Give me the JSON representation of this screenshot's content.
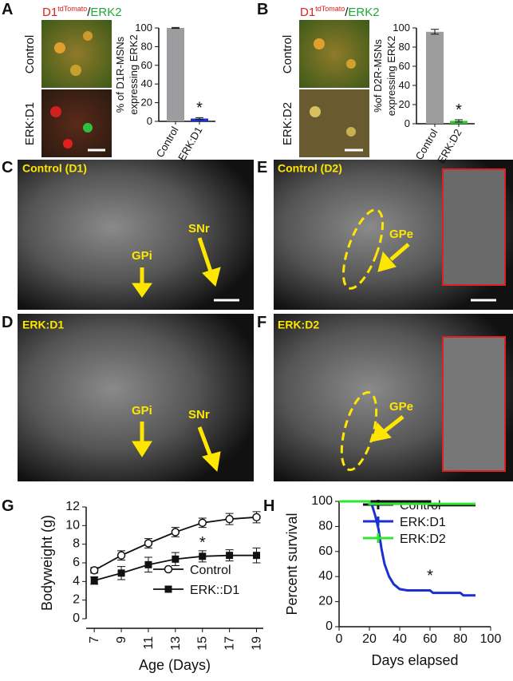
{
  "panel_labels": [
    "A",
    "B",
    "C",
    "D",
    "E",
    "F",
    "G",
    "H"
  ],
  "figure_a": {
    "stain": [
      "D1",
      "tdTomato",
      "/",
      "ERK2"
    ],
    "rows": [
      "Control",
      "ERK:D1"
    ]
  },
  "figure_b": {
    "stain": [
      "D1",
      "tdTomato",
      "/",
      "ERK2"
    ],
    "rows": [
      "Control",
      "ERK:D2"
    ]
  },
  "sections": [
    {
      "title": "Control (D1)",
      "labels": [
        "GPi",
        "SNr"
      ]
    },
    {
      "title": "ERK:D1",
      "labels": [
        "GPi",
        "SNr"
      ]
    },
    {
      "title": "Control (D2)",
      "labels": [
        "GPe"
      ]
    },
    {
      "title": "ERK:D2",
      "labels": [
        "GPe"
      ]
    }
  ],
  "chart_data": [
    {
      "type": "bar",
      "ylabel": [
        "% of D1R-MSNs",
        "expressing ERK2"
      ],
      "categories": [
        "Control",
        "ERK:D1"
      ],
      "values": [
        100,
        3
      ],
      "errors": [
        0.5,
        1
      ],
      "colors": [
        "#9d9d9f",
        "#1c2fd1"
      ],
      "ylim": [
        0,
        100
      ],
      "yticks": [
        0,
        20,
        40,
        60,
        80,
        100
      ],
      "annotation": "*"
    },
    {
      "type": "bar",
      "ylabel": [
        "%of D2R-MSNs",
        "expressing ERK2"
      ],
      "categories": [
        "Control",
        "ERK:D2"
      ],
      "values": [
        96,
        3
      ],
      "errors": [
        2.5,
        1.2
      ],
      "colors": [
        "#9d9d9f",
        "#2ecc2e"
      ],
      "ylim": [
        0,
        100
      ],
      "yticks": [
        0,
        20,
        40,
        60,
        80,
        100
      ],
      "annotation": "*"
    },
    {
      "type": "line",
      "xlabel": "Age (Days)",
      "ylabel": "Bodyweight (g)",
      "x": [
        7,
        9,
        11,
        13,
        15,
        17,
        19
      ],
      "xlim": [
        6.4,
        19.5
      ],
      "xticks": [
        7,
        9,
        11,
        13,
        15,
        17,
        19
      ],
      "ylim": [
        0,
        12
      ],
      "yticks": [
        0,
        2,
        4,
        6,
        8,
        10,
        12
      ],
      "legend": "lower right",
      "annotation": {
        "text": "*",
        "x": 15
      },
      "series": [
        {
          "name": "Control",
          "color": "#111111",
          "marker": "circle-open",
          "values": [
            5.2,
            6.8,
            8.1,
            9.3,
            10.3,
            10.7,
            10.9
          ],
          "errors": [
            0.3,
            0.5,
            0.5,
            0.5,
            0.5,
            0.6,
            0.6
          ]
        },
        {
          "name": "ERK::D1",
          "color": "#111111",
          "marker": "square",
          "values": [
            4.1,
            4.9,
            5.8,
            6.4,
            6.7,
            6.8,
            6.8
          ],
          "errors": [
            0.4,
            0.7,
            0.8,
            0.7,
            0.6,
            0.6,
            0.8
          ]
        }
      ]
    },
    {
      "type": "step",
      "xlabel": "Days elapsed",
      "ylabel": "Percent survival",
      "xlim": [
        0,
        100
      ],
      "xticks": [
        0,
        20,
        40,
        60,
        80,
        100
      ],
      "ylim": [
        0,
        100
      ],
      "yticks": [
        0,
        20,
        40,
        60,
        80,
        100
      ],
      "legend": "upper right",
      "annotation": {
        "text": "*",
        "x": 60
      },
      "series": [
        {
          "name": "Control",
          "color": "#111111",
          "x": [
            0,
            60,
            60,
            90
          ],
          "values": [
            100,
            100,
            97,
            97
          ]
        },
        {
          "name": "ERK:D1",
          "color": "#1c2fd1",
          "x": [
            0,
            20,
            22,
            24,
            26,
            28,
            30,
            33,
            36,
            40,
            45,
            55,
            60,
            62,
            80,
            82,
            90
          ],
          "values": [
            100,
            100,
            96,
            88,
            78,
            62,
            50,
            40,
            34,
            30,
            29,
            29,
            29,
            27,
            27,
            25,
            25
          ]
        },
        {
          "name": "ERK:D2",
          "color": "#2ee82e",
          "x": [
            0,
            20,
            20,
            90
          ],
          "values": [
            100,
            100,
            98,
            98
          ]
        }
      ]
    }
  ]
}
